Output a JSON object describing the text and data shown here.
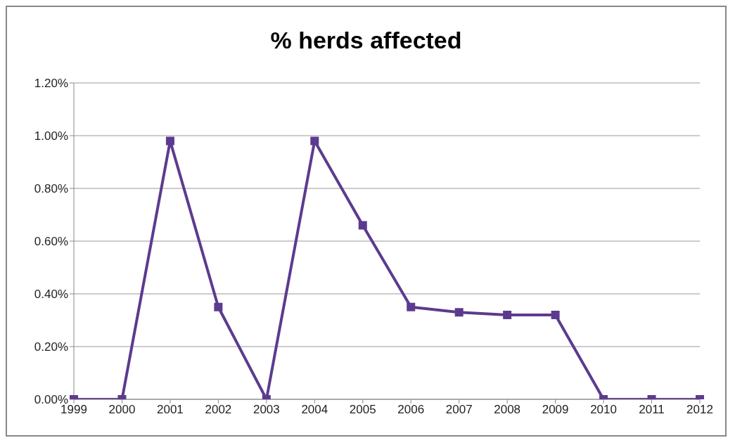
{
  "chart_data": {
    "type": "line",
    "title": "% herds affected",
    "categories": [
      "1999",
      "2000",
      "2001",
      "2002",
      "2003",
      "2004",
      "2005",
      "2006",
      "2007",
      "2008",
      "2009",
      "2010",
      "2011",
      "2012"
    ],
    "series": [
      {
        "color": "#5c3b8e",
        "values": [
          0,
          0,
          0.98,
          0.35,
          0,
          0.98,
          0.66,
          0.35,
          0.33,
          0.32,
          0.32,
          0,
          0,
          0
        ]
      }
    ],
    "ylim": [
      0,
      1.2
    ],
    "yticks": [
      {
        "value": 0,
        "label": "0.00%"
      },
      {
        "value": 0.2,
        "label": "0.20%"
      },
      {
        "value": 0.4,
        "label": "0.40%"
      },
      {
        "value": 0.6,
        "label": "0.60%"
      },
      {
        "value": 0.8,
        "label": "0.80%"
      },
      {
        "value": 1,
        "label": "1.00%"
      },
      {
        "value": 1.2,
        "label": "1.20%"
      }
    ],
    "grid": "y",
    "legend": false,
    "marker": "square",
    "line_style": "solid"
  }
}
